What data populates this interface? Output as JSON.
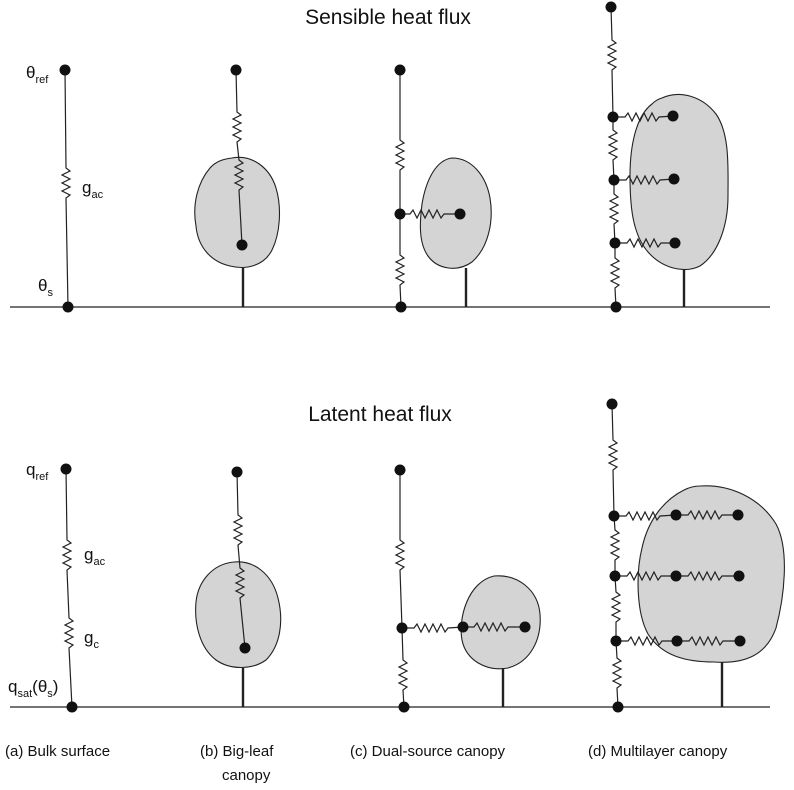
{
  "titles": {
    "sensible": "Sensible heat flux",
    "latent": "Latent heat flux"
  },
  "symbols": {
    "theta": "θ",
    "theta_ref_sub": "ref",
    "theta_s_sub": "s",
    "g": "g",
    "g_ac_sub": "ac",
    "g_c_sub": "c",
    "q": "q",
    "q_ref_sub": "ref",
    "q_sat_sub": "sat",
    "q_sat_arg_open": "(θ",
    "q_sat_arg_sub": "s",
    "q_sat_arg_close": ")"
  },
  "panels": [
    {
      "id": "a",
      "label_line1": "(a) Bulk surface",
      "label_line2": ""
    },
    {
      "id": "b",
      "label_line1": "(b) Big-leaf",
      "label_line2": "canopy"
    },
    {
      "id": "c",
      "label_line1": "(c) Dual-source canopy",
      "label_line2": ""
    },
    {
      "id": "d",
      "label_line1": "(d) Multilayer canopy",
      "label_line2": ""
    }
  ]
}
